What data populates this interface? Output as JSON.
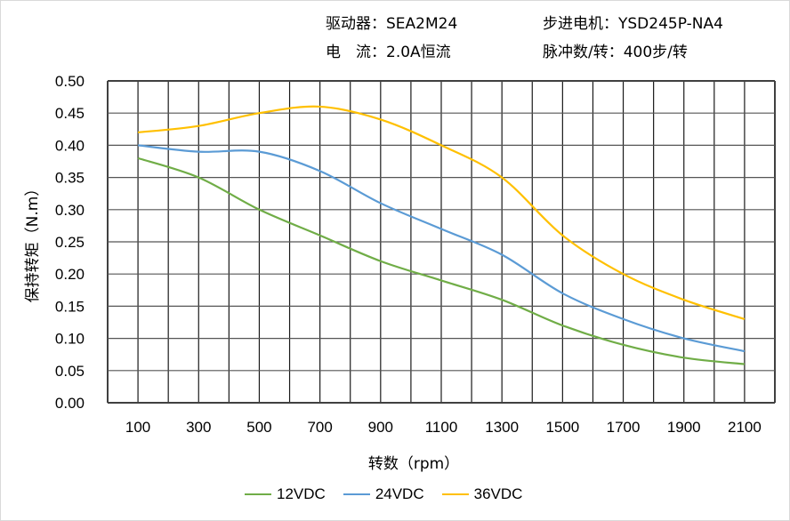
{
  "header": {
    "driver": "驱动器：SEA2M24",
    "motor": "步进电机：YSD245P-NA4",
    "current": "电　流：2.0A恒流",
    "pulses": "脉冲数/转：400步/转"
  },
  "chart_data": {
    "type": "line",
    "xlabel": "转数（rpm）",
    "ylabel": "保持转矩（N.m）",
    "x": [
      100,
      300,
      500,
      700,
      900,
      1100,
      1300,
      1500,
      1700,
      1900,
      2100
    ],
    "xticks": [
      "100",
      "300",
      "500",
      "700",
      "900",
      "1100",
      "1300",
      "1500",
      "1700",
      "1900",
      "2100"
    ],
    "yticks": [
      "0.00",
      "0.05",
      "0.10",
      "0.15",
      "0.20",
      "0.25",
      "0.30",
      "0.35",
      "0.40",
      "0.45",
      "0.50"
    ],
    "xlim": [
      0,
      2200
    ],
    "ylim": [
      0,
      0.5
    ],
    "grid": true,
    "legend": "bottom",
    "series": [
      {
        "name": "12VDC",
        "color": "#70ad47",
        "values": [
          0.38,
          0.35,
          0.3,
          0.26,
          0.22,
          0.19,
          0.16,
          0.12,
          0.09,
          0.07,
          0.06
        ]
      },
      {
        "name": "24VDC",
        "color": "#5b9bd5",
        "values": [
          0.4,
          0.39,
          0.39,
          0.36,
          0.31,
          0.27,
          0.23,
          0.17,
          0.13,
          0.1,
          0.08
        ]
      },
      {
        "name": "36VDC",
        "color": "#ffc000",
        "values": [
          0.42,
          0.43,
          0.45,
          0.46,
          0.44,
          0.4,
          0.35,
          0.26,
          0.2,
          0.16,
          0.13
        ]
      }
    ]
  }
}
